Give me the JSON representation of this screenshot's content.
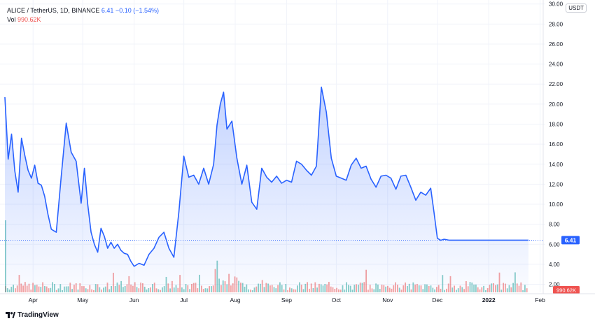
{
  "legend": {
    "symbol": "ALICE / TetherUS, 1D, BINANCE",
    "last": "6.41",
    "change": "−0.10 (−1.54%)",
    "vol_label": "Vol",
    "vol_value": "990.62K"
  },
  "currency": "USDT",
  "brand": "TradingView",
  "price_badge": "6.41",
  "volume_badge": "990.62K",
  "colors": {
    "line": "#2962ff",
    "fill_top": "#2962ff",
    "up_volume": "#26a69a",
    "down_volume": "#ef5350",
    "badge": "#2962ff",
    "vol_badge": "#ef5350"
  },
  "chart_data": {
    "type": "line",
    "title": "ALICE / TetherUS, 1D, BINANCE",
    "x_tick_labels": [
      "Apr",
      "May",
      "Jun",
      "Jul",
      "Aug",
      "Sep",
      "Oct",
      "Nov",
      "Dec",
      "2022",
      "Feb"
    ],
    "y_tick_labels": [
      "2.00",
      "4.00",
      "6.00",
      "8.00",
      "10.00",
      "12.00",
      "14.00",
      "16.00",
      "18.00",
      "20.00",
      "22.00",
      "24.00",
      "26.00",
      "28.00",
      "30.00"
    ],
    "ylim": [
      1.2,
      30.4
    ],
    "x_range": [
      "2021-03-15",
      "2022-02-05"
    ],
    "grid": true,
    "series": [
      {
        "name": "ALICE / TetherUS",
        "x": [
          "2021-03-15",
          "2021-03-17",
          "2021-03-19",
          "2021-03-21",
          "2021-03-23",
          "2021-03-25",
          "2021-03-27",
          "2021-03-29",
          "2021-03-31",
          "2021-04-02",
          "2021-04-04",
          "2021-04-06",
          "2021-04-08",
          "2021-04-10",
          "2021-04-12",
          "2021-04-15",
          "2021-04-18",
          "2021-04-21",
          "2021-04-24",
          "2021-04-27",
          "2021-04-30",
          "2021-05-02",
          "2021-05-04",
          "2021-05-06",
          "2021-05-08",
          "2021-05-10",
          "2021-05-12",
          "2021-05-14",
          "2021-05-16",
          "2021-05-18",
          "2021-05-20",
          "2021-05-22",
          "2021-05-24",
          "2021-05-26",
          "2021-05-28",
          "2021-05-30",
          "2021-06-01",
          "2021-06-04",
          "2021-06-07",
          "2021-06-10",
          "2021-06-13",
          "2021-06-16",
          "2021-06-19",
          "2021-06-22",
          "2021-06-25",
          "2021-06-28",
          "2021-07-01",
          "2021-07-04",
          "2021-07-07",
          "2021-07-10",
          "2021-07-13",
          "2021-07-16",
          "2021-07-19",
          "2021-07-21",
          "2021-07-23",
          "2021-07-25",
          "2021-07-27",
          "2021-07-30",
          "2021-08-02",
          "2021-08-05",
          "2021-08-08",
          "2021-08-11",
          "2021-08-14",
          "2021-08-17",
          "2021-08-20",
          "2021-08-23",
          "2021-08-26",
          "2021-08-29",
          "2021-09-01",
          "2021-09-04",
          "2021-09-07",
          "2021-09-10",
          "2021-09-13",
          "2021-09-16",
          "2021-09-19",
          "2021-09-22",
          "2021-09-25",
          "2021-09-28",
          "2021-10-01",
          "2021-10-04",
          "2021-10-07",
          "2021-10-10",
          "2021-10-13",
          "2021-10-16",
          "2021-10-19",
          "2021-10-22",
          "2021-10-25",
          "2021-10-28",
          "2021-10-31",
          "2021-11-03",
          "2021-11-06",
          "2021-11-09",
          "2021-11-12",
          "2021-11-15",
          "2021-11-18",
          "2021-11-21",
          "2021-11-24",
          "2021-11-27",
          "2021-11-29",
          "2021-12-01",
          "2021-12-03",
          "2021-12-05",
          "2021-12-08",
          "2021-12-11",
          "2021-12-14",
          "2021-12-17",
          "2021-12-20",
          "2021-12-23",
          "2021-12-26",
          "2021-12-29",
          "2022-01-01",
          "2022-01-04",
          "2022-01-07",
          "2022-01-10",
          "2022-01-13",
          "2022-01-16",
          "2022-01-19",
          "2022-01-22",
          "2022-01-25"
        ],
        "values": [
          20.7,
          14.5,
          17.0,
          13.3,
          11.2,
          16.6,
          14.9,
          13.4,
          12.6,
          13.9,
          12.1,
          11.9,
          10.8,
          9.0,
          7.5,
          7.2,
          12.8,
          18.1,
          15.2,
          14.3,
          10.1,
          13.6,
          10.0,
          7.2,
          6.0,
          5.2,
          7.6,
          6.8,
          5.6,
          6.2,
          5.6,
          6.0,
          5.4,
          5.1,
          5.0,
          4.3,
          3.8,
          4.1,
          3.9,
          5.0,
          5.6,
          6.7,
          7.2,
          5.6,
          4.7,
          9.2,
          14.8,
          12.7,
          12.9,
          12.0,
          13.6,
          12.0,
          14.0,
          17.9,
          20.0,
          21.2,
          17.5,
          18.3,
          14.6,
          12.0,
          13.9,
          10.2,
          9.5,
          13.6,
          12.7,
          12.2,
          12.8,
          12.1,
          12.4,
          12.2,
          14.3,
          14.0,
          13.4,
          12.9,
          13.8,
          21.7,
          19.2,
          14.6,
          12.8,
          12.6,
          12.4,
          13.9,
          14.6,
          13.6,
          13.8,
          12.5,
          11.7,
          12.8,
          12.9,
          12.6,
          11.5,
          12.8,
          12.9,
          11.7,
          10.4,
          11.2,
          10.9,
          11.6,
          9.2,
          6.6,
          6.4,
          6.5,
          6.41,
          6.41,
          6.41,
          6.41,
          6.41,
          6.41,
          6.41,
          6.41,
          6.41,
          6.41,
          6.41,
          6.41,
          6.41,
          6.41,
          6.41,
          6.41,
          6.41
        ]
      }
    ]
  }
}
